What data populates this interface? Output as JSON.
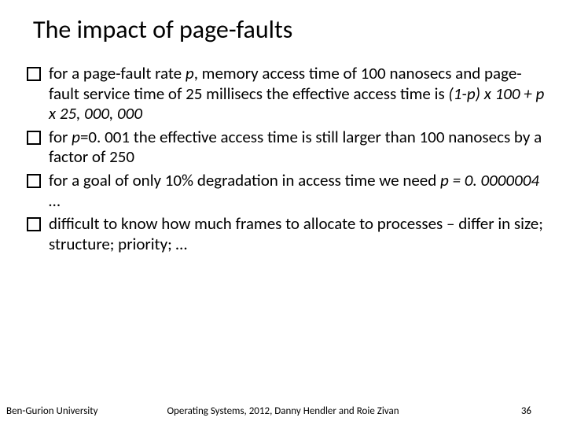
{
  "title": "The impact of page-faults",
  "bullets": [
    {
      "pre": " for a page-fault rate ",
      "em1": "p",
      "mid1": ", memory access time of 100 nanosecs and page-fault service time of 25 millisecs the effective access time is  ",
      "em2": "(1-p) x 100 + p x 25, 000, 000",
      "post": ""
    },
    {
      "pre": " for ",
      "em1": "p",
      "mid1": "=0. 001 the effective access time is still larger than 100 nanosecs by a factor of 250",
      "em2": "",
      "post": ""
    },
    {
      "pre": " for a goal of only 10% degradation in access time we need  ",
      "em1": "p = 0. 0000004",
      "mid1": " …",
      "em2": "",
      "post": ""
    },
    {
      "pre": " difficult to know how much frames to allocate to processes – differ in size; structure; priority; …",
      "em1": "",
      "mid1": "",
      "em2": "",
      "post": ""
    }
  ],
  "footer": {
    "left": "Ben-Gurion University",
    "center": "Operating Systems, 2012, Danny Hendler and Roie Zivan",
    "page": "36"
  },
  "colors": {
    "background": "#ffffff",
    "text": "#000000",
    "bullet_border": "#000000"
  }
}
